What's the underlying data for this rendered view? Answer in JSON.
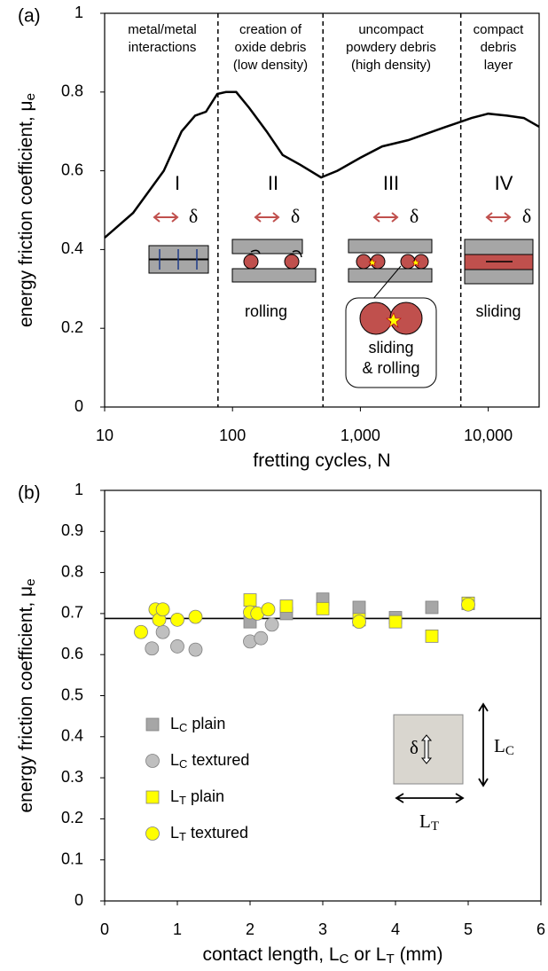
{
  "chart_data": [
    {
      "type": "line",
      "panel": "(a)",
      "xlabel": "fretting cycles, N",
      "ylabel": "energy friction coefficient, μe",
      "log_x": true,
      "xlim": [
        10,
        25000
      ],
      "xticks": [
        10,
        100,
        {
          "value": 1000,
          "label": "1,000"
        },
        {
          "value": 10000,
          "label": "10,000"
        }
      ],
      "ylim": [
        0,
        1
      ],
      "yticks": [
        0,
        0.2,
        0.4,
        0.6,
        0.8,
        1
      ],
      "x": [
        10,
        16.7,
        29,
        40,
        51,
        62,
        76,
        89,
        107,
        135,
        185,
        247,
        340,
        493,
        660,
        1000,
        1480,
        2370,
        4500,
        7400,
        10000,
        14000,
        19000,
        25000
      ],
      "values": [
        0.43,
        0.493,
        0.6,
        0.7,
        0.74,
        0.75,
        0.795,
        0.8,
        0.8,
        0.76,
        0.7,
        0.64,
        0.615,
        0.583,
        0.6,
        0.633,
        0.662,
        0.678,
        0.71,
        0.734,
        0.745,
        0.74,
        0.734,
        0.712
      ],
      "color": "#000000",
      "dividers": [
        77,
        510,
        6100
      ],
      "delta": "δ",
      "regions": [
        {
          "numeral": "I",
          "label": [
            "metal/metal",
            "interactions"
          ]
        },
        {
          "numeral": "II",
          "label": [
            "creation of",
            "oxide debris",
            "(low density)"
          ],
          "note": [
            "rolling"
          ]
        },
        {
          "numeral": "III",
          "label": [
            "uncompact",
            "powdery debris",
            "(high density)"
          ],
          "note": [
            "sliding",
            "& rolling"
          ]
        },
        {
          "numeral": "IV",
          "label": [
            "compact",
            "debris",
            "layer"
          ],
          "note": [
            "sliding"
          ]
        }
      ]
    },
    {
      "type": "scatter",
      "panel": "(b)",
      "xlabel": "contact length, LC or LT (mm)",
      "ylabel": "energy friction coefficient, μe",
      "xlim": [
        0,
        6
      ],
      "xticks": [
        0,
        1,
        2,
        3,
        4,
        5,
        6
      ],
      "ylim": [
        0,
        1
      ],
      "yticks": [
        0,
        0.1,
        0.2,
        0.3,
        0.4,
        0.5,
        0.6,
        0.7,
        0.8,
        0.9,
        1
      ],
      "reference_line": 0.688,
      "series": [
        {
          "name": "LC plain",
          "marker": "square",
          "color": "#a6a6a6",
          "x": [
            2,
            2.5,
            3,
            3.5,
            4,
            4.5,
            5
          ],
          "values": [
            0.68,
            0.7,
            0.735,
            0.715,
            0.69,
            0.715,
            0.725
          ]
        },
        {
          "name": "LC textured",
          "marker": "circle",
          "color": "#bfbfbf",
          "x": [
            0.65,
            0.8,
            1.0,
            1.25,
            2.0,
            2.15,
            2.3
          ],
          "values": [
            0.615,
            0.655,
            0.62,
            0.612,
            0.632,
            0.64,
            0.673
          ]
        },
        {
          "name": "LT plain",
          "marker": "square",
          "color": "#ffff00",
          "x": [
            2,
            2.5,
            3,
            3.5,
            4,
            4.5,
            5
          ],
          "values": [
            0.733,
            0.718,
            0.712,
            0.685,
            0.68,
            0.645,
            0.725
          ]
        },
        {
          "name": "LT textured",
          "marker": "circle",
          "color": "#ffff00",
          "x": [
            0.5,
            0.7,
            0.75,
            0.8,
            1.0,
            1.25,
            2.0,
            2.1,
            2.25,
            3.5,
            5.0
          ],
          "values": [
            0.655,
            0.71,
            0.685,
            0.71,
            0.685,
            0.692,
            0.703,
            0.7,
            0.71,
            0.68,
            0.722
          ]
        }
      ],
      "inset": {
        "symbol": "δ",
        "height_label": "LC",
        "width_label": "LT"
      }
    }
  ]
}
